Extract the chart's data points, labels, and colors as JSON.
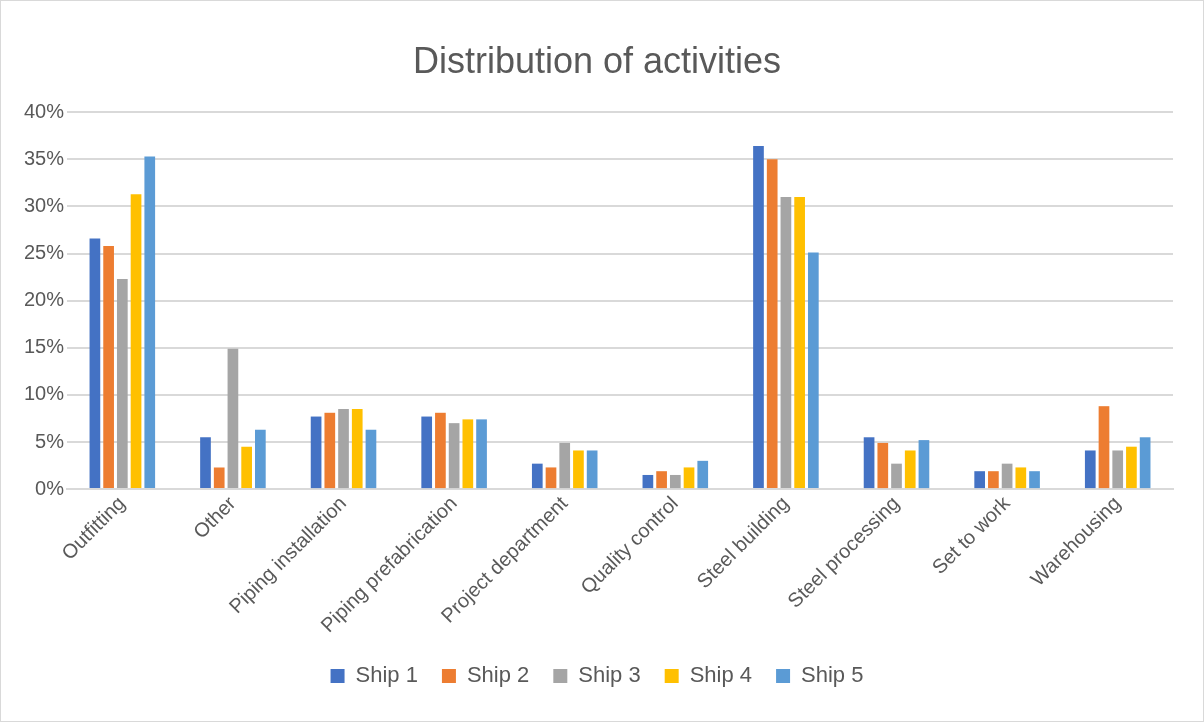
{
  "chart_data": {
    "type": "bar",
    "title": "Distribution of activities",
    "categories": [
      "Outfitting",
      "Other",
      "Piping installation",
      "Piping prefabrication",
      "Project department",
      "Quality control",
      "Steel building",
      "Steel processing",
      "Set to work",
      "Warehousing"
    ],
    "series": [
      {
        "name": "Ship 1",
        "color": "#4472c4",
        "values": [
          26.6,
          5.5,
          7.7,
          7.7,
          2.7,
          1.5,
          36.4,
          5.5,
          1.9,
          4.1
        ]
      },
      {
        "name": "Ship 2",
        "color": "#ed7d31",
        "values": [
          25.8,
          2.3,
          8.1,
          8.1,
          2.3,
          1.9,
          35.0,
          4.9,
          1.9,
          8.8
        ]
      },
      {
        "name": "Ship 3",
        "color": "#a5a5a5",
        "values": [
          22.3,
          14.9,
          8.5,
          7.0,
          4.9,
          1.5,
          31.0,
          2.7,
          2.7,
          4.1
        ]
      },
      {
        "name": "Ship 4",
        "color": "#ffc000",
        "values": [
          31.3,
          4.5,
          8.5,
          7.4,
          4.1,
          2.3,
          31.0,
          4.1,
          2.3,
          4.5
        ]
      },
      {
        "name": "Ship 5",
        "color": "#5b9bd5",
        "values": [
          35.3,
          6.3,
          6.3,
          7.4,
          4.1,
          3.0,
          25.1,
          5.2,
          1.9,
          5.5
        ]
      }
    ],
    "ylim": [
      0,
      40
    ],
    "yticks": [
      {
        "value": 0,
        "label": "0%"
      },
      {
        "value": 5,
        "label": "5%"
      },
      {
        "value": 10,
        "label": "10%"
      },
      {
        "value": 15,
        "label": "15%"
      },
      {
        "value": 20,
        "label": "20%"
      },
      {
        "value": 25,
        "label": "25%"
      },
      {
        "value": 30,
        "label": "30%"
      },
      {
        "value": 35,
        "label": "35%"
      },
      {
        "value": 40,
        "label": "40%"
      }
    ],
    "grid": "y",
    "legend": "bottom"
  }
}
